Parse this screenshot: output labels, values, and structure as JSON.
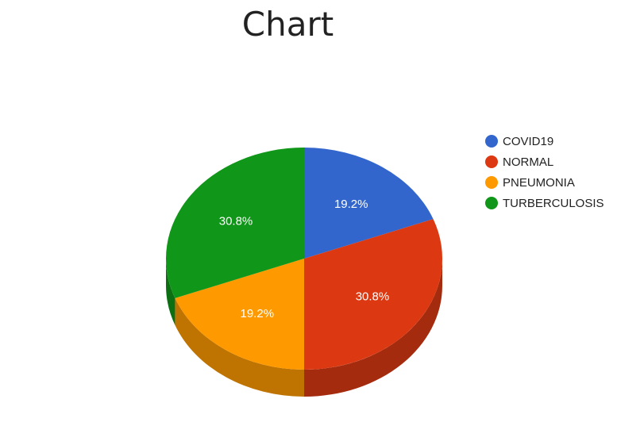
{
  "title": "Chart",
  "chart_data": {
    "type": "pie",
    "title": "Chart",
    "is3D": true,
    "legend_position": "right",
    "slices": [
      {
        "label": "COVID19",
        "value": 19.2,
        "display": "19.2%",
        "color": "#3366cc",
        "side_color": "#264d99"
      },
      {
        "label": "NORMAL",
        "value": 30.8,
        "display": "30.8%",
        "color": "#dc3912",
        "side_color": "#a52b0e"
      },
      {
        "label": "PNEUMONIA",
        "value": 19.2,
        "display": "19.2%",
        "color": "#ff9900",
        "side_color": "#bf7300"
      },
      {
        "label": "TURBERCULOSIS",
        "value": 30.8,
        "display": "30.8%",
        "color": "#109618",
        "side_color": "#0c7012"
      }
    ]
  }
}
